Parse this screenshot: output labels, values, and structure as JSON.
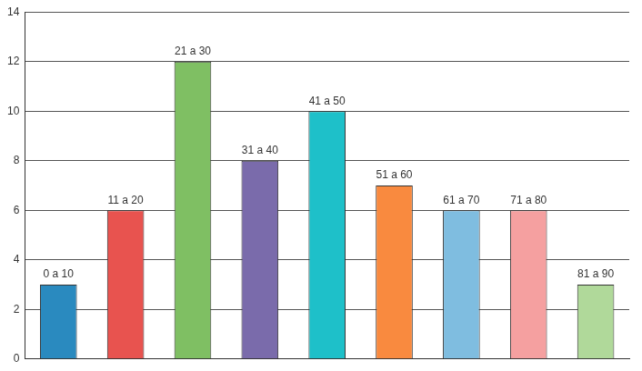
{
  "chart_data": {
    "type": "bar",
    "categories": [
      "0 a 10",
      "11 a 20",
      "21 a 30",
      "31 a 40",
      "41 a 50",
      "51 a 60",
      "61 a 70",
      "71 a 80",
      "81 a 90"
    ],
    "values": [
      3,
      6,
      12,
      8,
      10,
      7,
      6,
      6,
      3
    ],
    "colors": [
      "#2a8abf",
      "#e8534f",
      "#7fbf63",
      "#7a6bab",
      "#1ec0c9",
      "#f98a3f",
      "#7fbde0",
      "#f5a0a0",
      "#b0d99a"
    ],
    "ylim": [
      0,
      14
    ],
    "yticks": [
      0,
      2,
      4,
      6,
      8,
      10,
      12,
      14
    ],
    "grid": true,
    "tick_labels": "y"
  }
}
